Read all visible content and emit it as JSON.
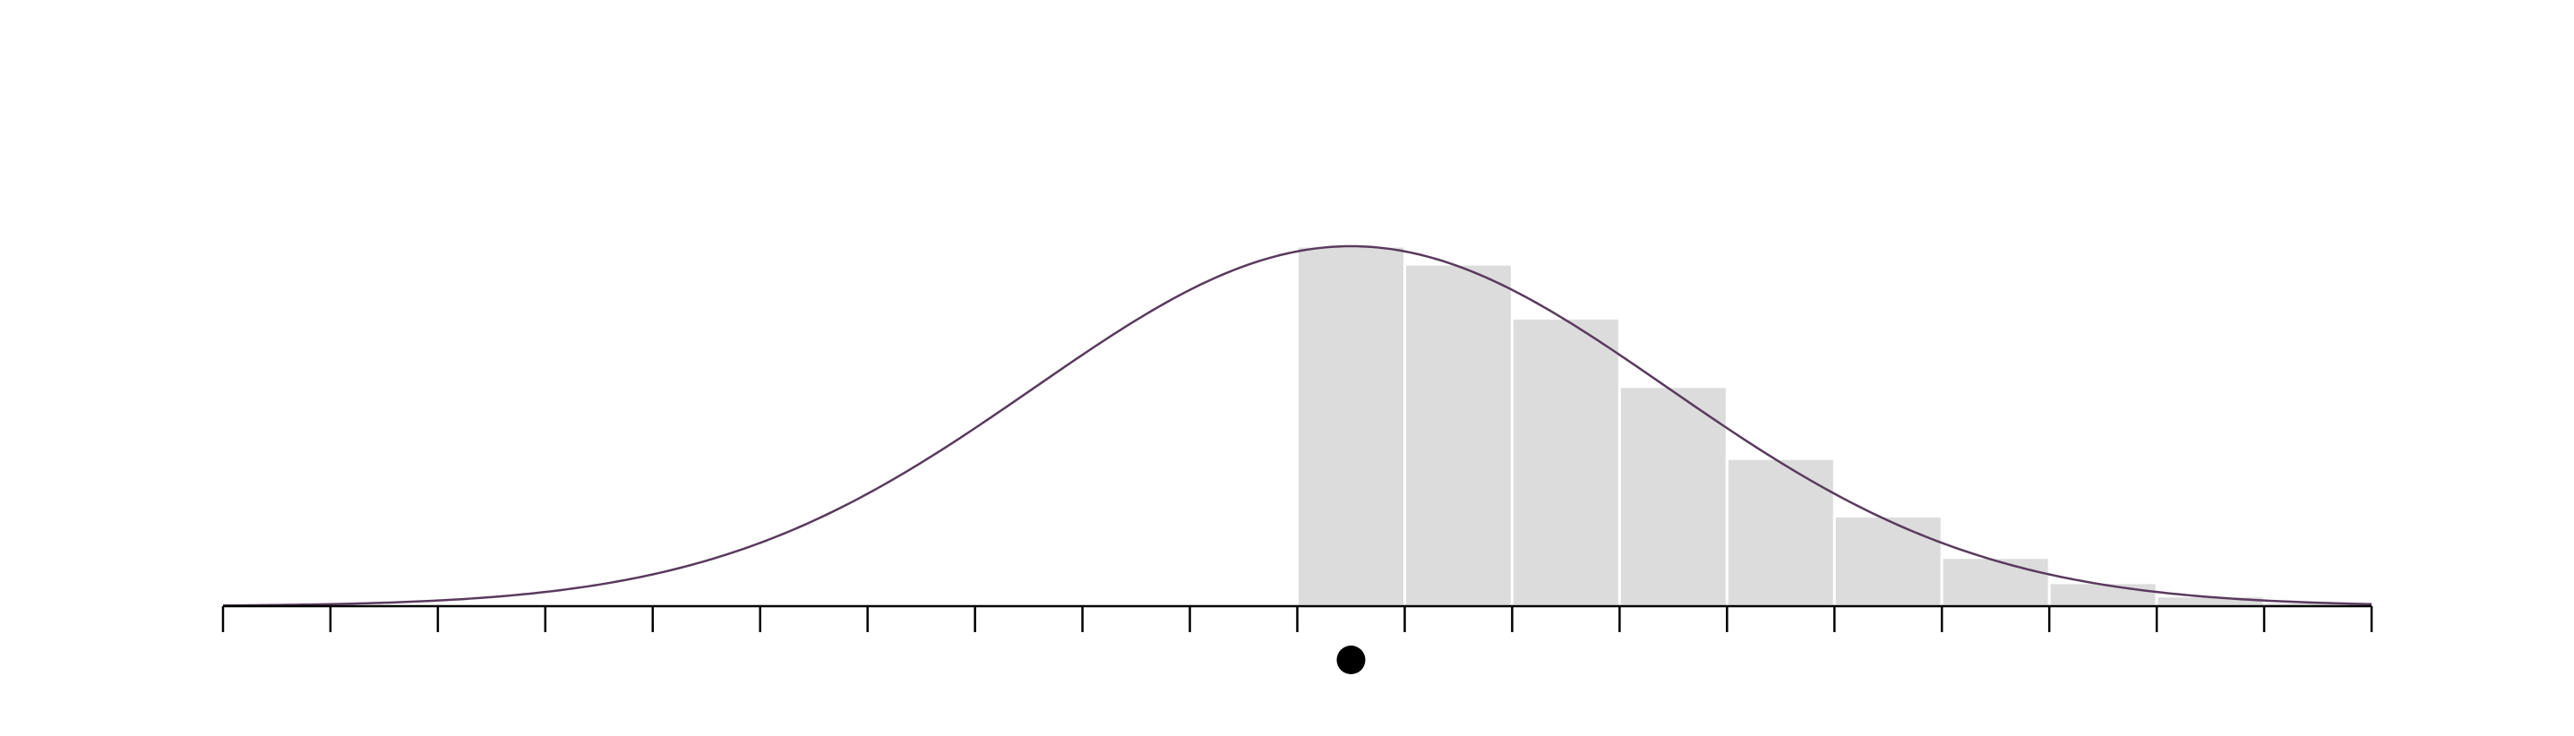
{
  "chart_data": {
    "type": "bar",
    "title": "",
    "xlabel": "",
    "ylabel": "",
    "grid": false,
    "xlim": [
      -10,
      10
    ],
    "ylim": [
      0,
      1.1
    ],
    "x_ticks": [
      -10,
      -9,
      -8,
      -7,
      -6,
      -5,
      -4,
      -3,
      -2,
      -1,
      0,
      1,
      2,
      3,
      4,
      5,
      6,
      7,
      8,
      9,
      10
    ],
    "bins": [
      {
        "x0": 0,
        "x1": 1,
        "value": 1.0
      },
      {
        "x0": 1,
        "x1": 2,
        "value": 0.95
      },
      {
        "x0": 2,
        "x1": 3,
        "value": 0.8
      },
      {
        "x0": 3,
        "x1": 4,
        "value": 0.61
      },
      {
        "x0": 4,
        "x1": 5,
        "value": 0.41
      },
      {
        "x0": 5,
        "x1": 6,
        "value": 0.25
      },
      {
        "x0": 6,
        "x1": 7,
        "value": 0.135
      },
      {
        "x0": 7,
        "x1": 8,
        "value": 0.065
      },
      {
        "x0": 8,
        "x1": 9,
        "value": 0.028
      },
      {
        "x0": 9,
        "x1": 10,
        "value": 0.011
      }
    ],
    "curve": {
      "type": "normal",
      "mean": 0.5,
      "sd": 2.95,
      "peak": 1.0
    },
    "marker": {
      "x": 0.5
    },
    "colors": {
      "bar": "#dcdcdc",
      "bar_edge": "#ffffff",
      "curve": "#5a3a5e",
      "axis": "#000000",
      "marker": "#000000"
    }
  }
}
